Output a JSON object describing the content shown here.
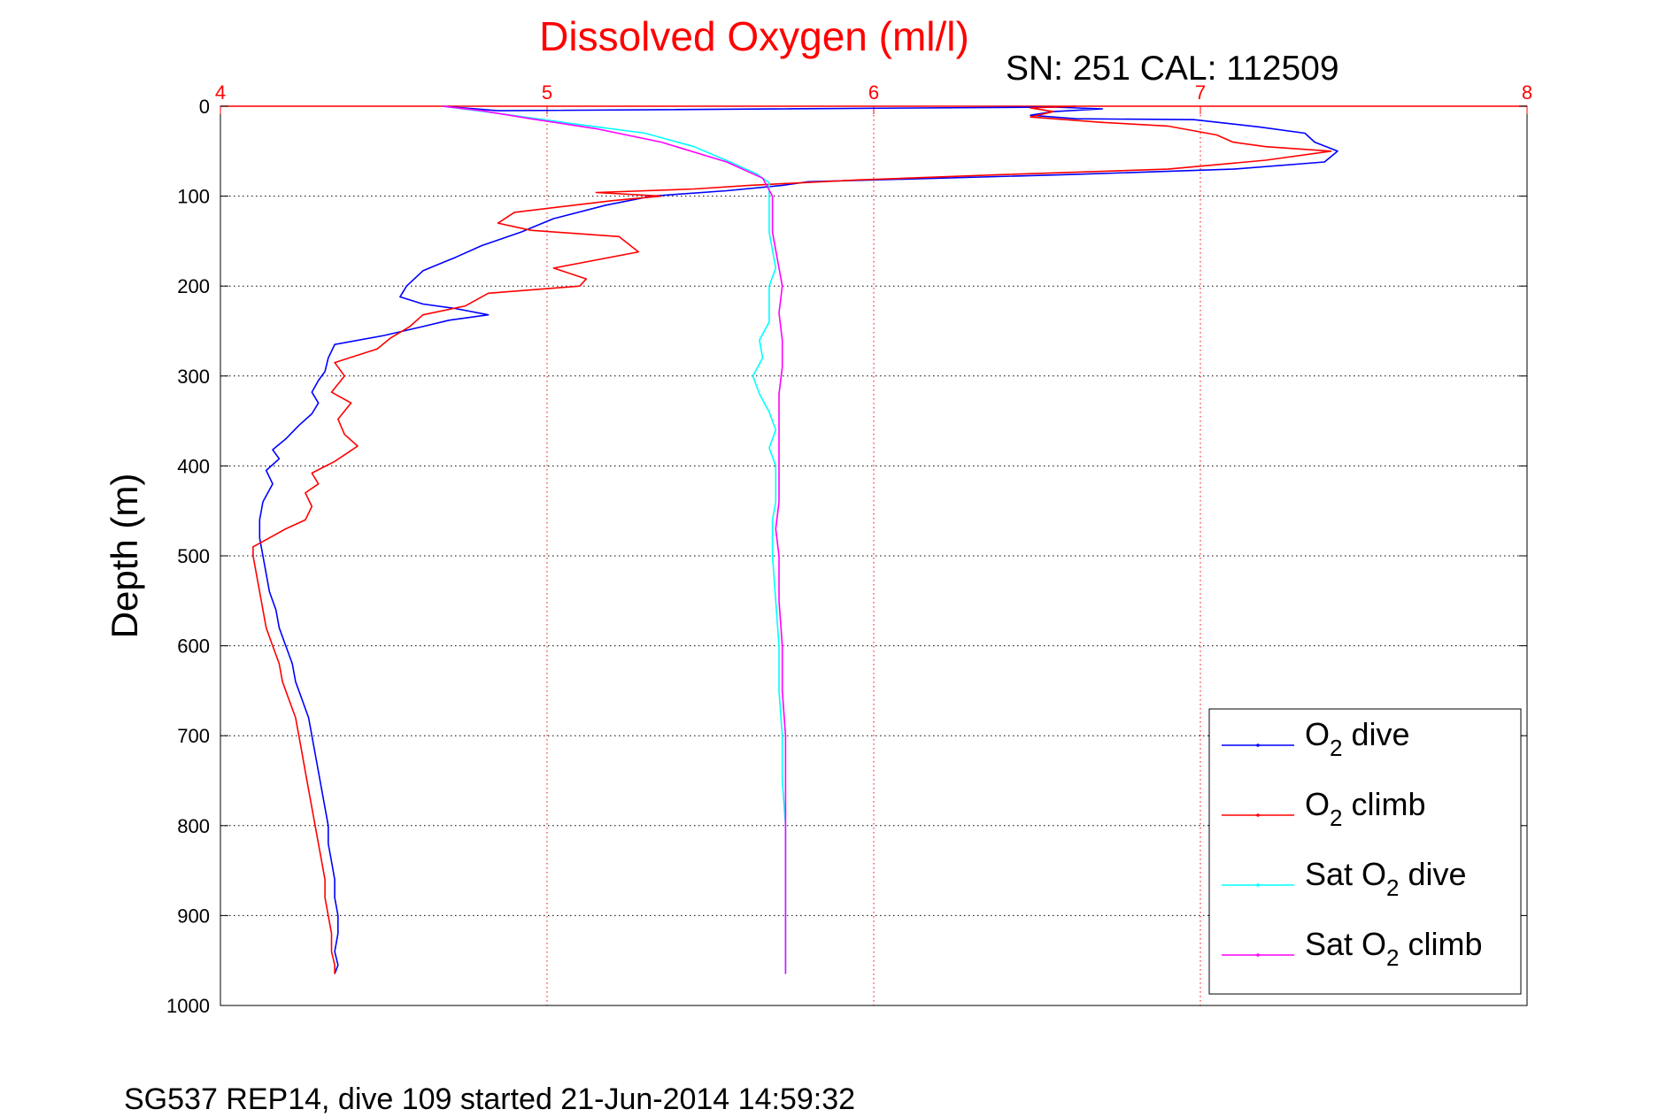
{
  "chart_data": {
    "type": "line",
    "title": "Dissolved Oxygen (ml/l)",
    "subtitle": "SN: 251  CAL: 112509",
    "footer": "SG537 REP14, dive 109 started 21-Jun-2014 14:59:32",
    "ylabel": "Depth (m)",
    "xlim": [
      4,
      8
    ],
    "ylim": [
      0,
      1000
    ],
    "y_reversed": true,
    "x_axis_position": "top",
    "x_ticks": [
      4,
      5,
      6,
      7,
      8
    ],
    "x_tick_labels": [
      "4",
      "5",
      "6",
      "7",
      "8"
    ],
    "y_ticks": [
      0,
      100,
      200,
      300,
      400,
      500,
      600,
      700,
      800,
      900,
      1000
    ],
    "y_tick_labels": [
      "0",
      "100",
      "200",
      "300",
      "400",
      "500",
      "600",
      "700",
      "800",
      "900",
      "1000"
    ],
    "grid": true,
    "legend_position": "bottom-right",
    "colors": {
      "title": "#ff0000",
      "x_tick_labels": "#ff0000",
      "top_axis": "#ff0000",
      "vertical_grid": "#ff0000",
      "horizontal_grid": "#000000"
    },
    "series": [
      {
        "name": "O2 dive",
        "label_main": "O",
        "label_sub": "2",
        "label_rest": " dive",
        "color": "#0000ff",
        "points": [
          [
            4.68,
            0
          ],
          [
            4.85,
            5
          ],
          [
            6.55,
            1
          ],
          [
            6.7,
            3
          ],
          [
            6.55,
            6
          ],
          [
            6.48,
            10
          ],
          [
            6.62,
            14
          ],
          [
            6.98,
            15
          ],
          [
            7.18,
            23
          ],
          [
            7.32,
            30
          ],
          [
            7.35,
            40
          ],
          [
            7.42,
            50
          ],
          [
            7.38,
            62
          ],
          [
            7.1,
            70
          ],
          [
            6.6,
            76
          ],
          [
            6.2,
            80
          ],
          [
            5.8,
            84
          ],
          [
            5.72,
            88
          ],
          [
            5.55,
            94
          ],
          [
            5.32,
            100
          ],
          [
            5.18,
            110
          ],
          [
            5.02,
            125
          ],
          [
            4.92,
            140
          ],
          [
            4.8,
            155
          ],
          [
            4.72,
            168
          ],
          [
            4.62,
            183
          ],
          [
            4.57,
            200
          ],
          [
            4.55,
            212
          ],
          [
            4.62,
            220
          ],
          [
            4.72,
            225
          ],
          [
            4.82,
            232
          ],
          [
            4.7,
            238
          ],
          [
            4.62,
            245
          ],
          [
            4.5,
            255
          ],
          [
            4.35,
            265
          ],
          [
            4.33,
            280
          ],
          [
            4.32,
            295
          ],
          [
            4.3,
            305
          ],
          [
            4.28,
            318
          ],
          [
            4.3,
            330
          ],
          [
            4.28,
            342
          ],
          [
            4.24,
            355
          ],
          [
            4.2,
            370
          ],
          [
            4.16,
            382
          ],
          [
            4.18,
            392
          ],
          [
            4.14,
            405
          ],
          [
            4.16,
            420
          ],
          [
            4.13,
            440
          ],
          [
            4.12,
            460
          ],
          [
            4.12,
            480
          ],
          [
            4.13,
            500
          ],
          [
            4.14,
            520
          ],
          [
            4.15,
            540
          ],
          [
            4.17,
            560
          ],
          [
            4.18,
            580
          ],
          [
            4.2,
            600
          ],
          [
            4.22,
            620
          ],
          [
            4.23,
            640
          ],
          [
            4.25,
            660
          ],
          [
            4.27,
            680
          ],
          [
            4.28,
            700
          ],
          [
            4.29,
            720
          ],
          [
            4.3,
            740
          ],
          [
            4.31,
            760
          ],
          [
            4.32,
            780
          ],
          [
            4.33,
            800
          ],
          [
            4.33,
            820
          ],
          [
            4.34,
            840
          ],
          [
            4.35,
            860
          ],
          [
            4.35,
            880
          ],
          [
            4.36,
            900
          ],
          [
            4.36,
            920
          ],
          [
            4.35,
            940
          ],
          [
            4.36,
            955
          ],
          [
            4.35,
            965
          ]
        ]
      },
      {
        "name": "O2 climb",
        "label_main": "O",
        "label_sub": "2",
        "label_rest": " climb",
        "color": "#ff0000",
        "points": [
          [
            4.35,
            965
          ],
          [
            4.35,
            955
          ],
          [
            4.34,
            940
          ],
          [
            4.34,
            920
          ],
          [
            4.33,
            900
          ],
          [
            4.32,
            880
          ],
          [
            4.32,
            860
          ],
          [
            4.31,
            840
          ],
          [
            4.3,
            820
          ],
          [
            4.29,
            800
          ],
          [
            4.28,
            780
          ],
          [
            4.27,
            760
          ],
          [
            4.26,
            740
          ],
          [
            4.25,
            720
          ],
          [
            4.24,
            700
          ],
          [
            4.23,
            680
          ],
          [
            4.21,
            660
          ],
          [
            4.19,
            640
          ],
          [
            4.18,
            620
          ],
          [
            4.16,
            600
          ],
          [
            4.14,
            580
          ],
          [
            4.13,
            560
          ],
          [
            4.12,
            540
          ],
          [
            4.11,
            520
          ],
          [
            4.1,
            500
          ],
          [
            4.1,
            490
          ],
          [
            4.15,
            480
          ],
          [
            4.2,
            470
          ],
          [
            4.26,
            460
          ],
          [
            4.28,
            445
          ],
          [
            4.26,
            430
          ],
          [
            4.3,
            420
          ],
          [
            4.28,
            408
          ],
          [
            4.35,
            395
          ],
          [
            4.42,
            378
          ],
          [
            4.38,
            365
          ],
          [
            4.36,
            348
          ],
          [
            4.4,
            330
          ],
          [
            4.34,
            318
          ],
          [
            4.38,
            300
          ],
          [
            4.35,
            285
          ],
          [
            4.48,
            270
          ],
          [
            4.52,
            258
          ],
          [
            4.58,
            245
          ],
          [
            4.62,
            232
          ],
          [
            4.75,
            222
          ],
          [
            4.82,
            208
          ],
          [
            5.1,
            200
          ],
          [
            5.12,
            192
          ],
          [
            5.02,
            180
          ],
          [
            5.28,
            162
          ],
          [
            5.22,
            145
          ],
          [
            4.95,
            138
          ],
          [
            4.85,
            130
          ],
          [
            4.9,
            118
          ],
          [
            5.2,
            105
          ],
          [
            5.35,
            100
          ],
          [
            5.15,
            96
          ],
          [
            5.45,
            92
          ],
          [
            5.62,
            88
          ],
          [
            5.95,
            82
          ],
          [
            6.4,
            76
          ],
          [
            6.9,
            70
          ],
          [
            7.2,
            60
          ],
          [
            7.4,
            50
          ],
          [
            7.2,
            45
          ],
          [
            7.1,
            40
          ],
          [
            7.05,
            32
          ],
          [
            6.9,
            22
          ],
          [
            6.7,
            18
          ],
          [
            6.48,
            12
          ],
          [
            6.55,
            6
          ],
          [
            6.48,
            2
          ],
          [
            6.62,
            0
          ]
        ]
      },
      {
        "name": "Sat O2 dive",
        "label_main": "Sat O",
        "label_sub": "2",
        "label_rest": " dive",
        "color": "#00ffff",
        "points": [
          [
            4.68,
            0
          ],
          [
            4.85,
            8
          ],
          [
            5.05,
            18
          ],
          [
            5.3,
            30
          ],
          [
            5.45,
            45
          ],
          [
            5.56,
            62
          ],
          [
            5.64,
            75
          ],
          [
            5.68,
            85
          ],
          [
            5.68,
            100
          ],
          [
            5.68,
            120
          ],
          [
            5.68,
            140
          ],
          [
            5.69,
            160
          ],
          [
            5.7,
            180
          ],
          [
            5.68,
            200
          ],
          [
            5.68,
            220
          ],
          [
            5.68,
            240
          ],
          [
            5.65,
            260
          ],
          [
            5.66,
            280
          ],
          [
            5.63,
            300
          ],
          [
            5.65,
            320
          ],
          [
            5.68,
            340
          ],
          [
            5.7,
            360
          ],
          [
            5.68,
            380
          ],
          [
            5.7,
            400
          ],
          [
            5.7,
            420
          ],
          [
            5.7,
            440
          ],
          [
            5.69,
            460
          ],
          [
            5.69,
            480
          ],
          [
            5.69,
            500
          ],
          [
            5.7,
            550
          ],
          [
            5.71,
            600
          ],
          [
            5.71,
            650
          ],
          [
            5.72,
            700
          ],
          [
            5.72,
            750
          ],
          [
            5.73,
            800
          ],
          [
            5.73,
            850
          ],
          [
            5.73,
            900
          ],
          [
            5.73,
            940
          ],
          [
            5.73,
            965
          ]
        ]
      },
      {
        "name": "Sat O2 climb",
        "label_main": "Sat O",
        "label_sub": "2",
        "label_rest": " climb",
        "color": "#ff00ff",
        "points": [
          [
            5.73,
            965
          ],
          [
            5.73,
            940
          ],
          [
            5.73,
            900
          ],
          [
            5.73,
            860
          ],
          [
            5.73,
            800
          ],
          [
            5.73,
            750
          ],
          [
            5.73,
            700
          ],
          [
            5.72,
            650
          ],
          [
            5.72,
            600
          ],
          [
            5.71,
            550
          ],
          [
            5.71,
            500
          ],
          [
            5.7,
            470
          ],
          [
            5.71,
            440
          ],
          [
            5.71,
            410
          ],
          [
            5.71,
            380
          ],
          [
            5.71,
            350
          ],
          [
            5.71,
            320
          ],
          [
            5.72,
            290
          ],
          [
            5.72,
            260
          ],
          [
            5.71,
            230
          ],
          [
            5.72,
            200
          ],
          [
            5.71,
            180
          ],
          [
            5.7,
            160
          ],
          [
            5.69,
            140
          ],
          [
            5.69,
            120
          ],
          [
            5.69,
            100
          ],
          [
            5.66,
            80
          ],
          [
            5.55,
            62
          ],
          [
            5.35,
            40
          ],
          [
            5.15,
            25
          ],
          [
            4.95,
            14
          ],
          [
            4.8,
            5
          ],
          [
            4.68,
            0
          ]
        ]
      }
    ]
  }
}
